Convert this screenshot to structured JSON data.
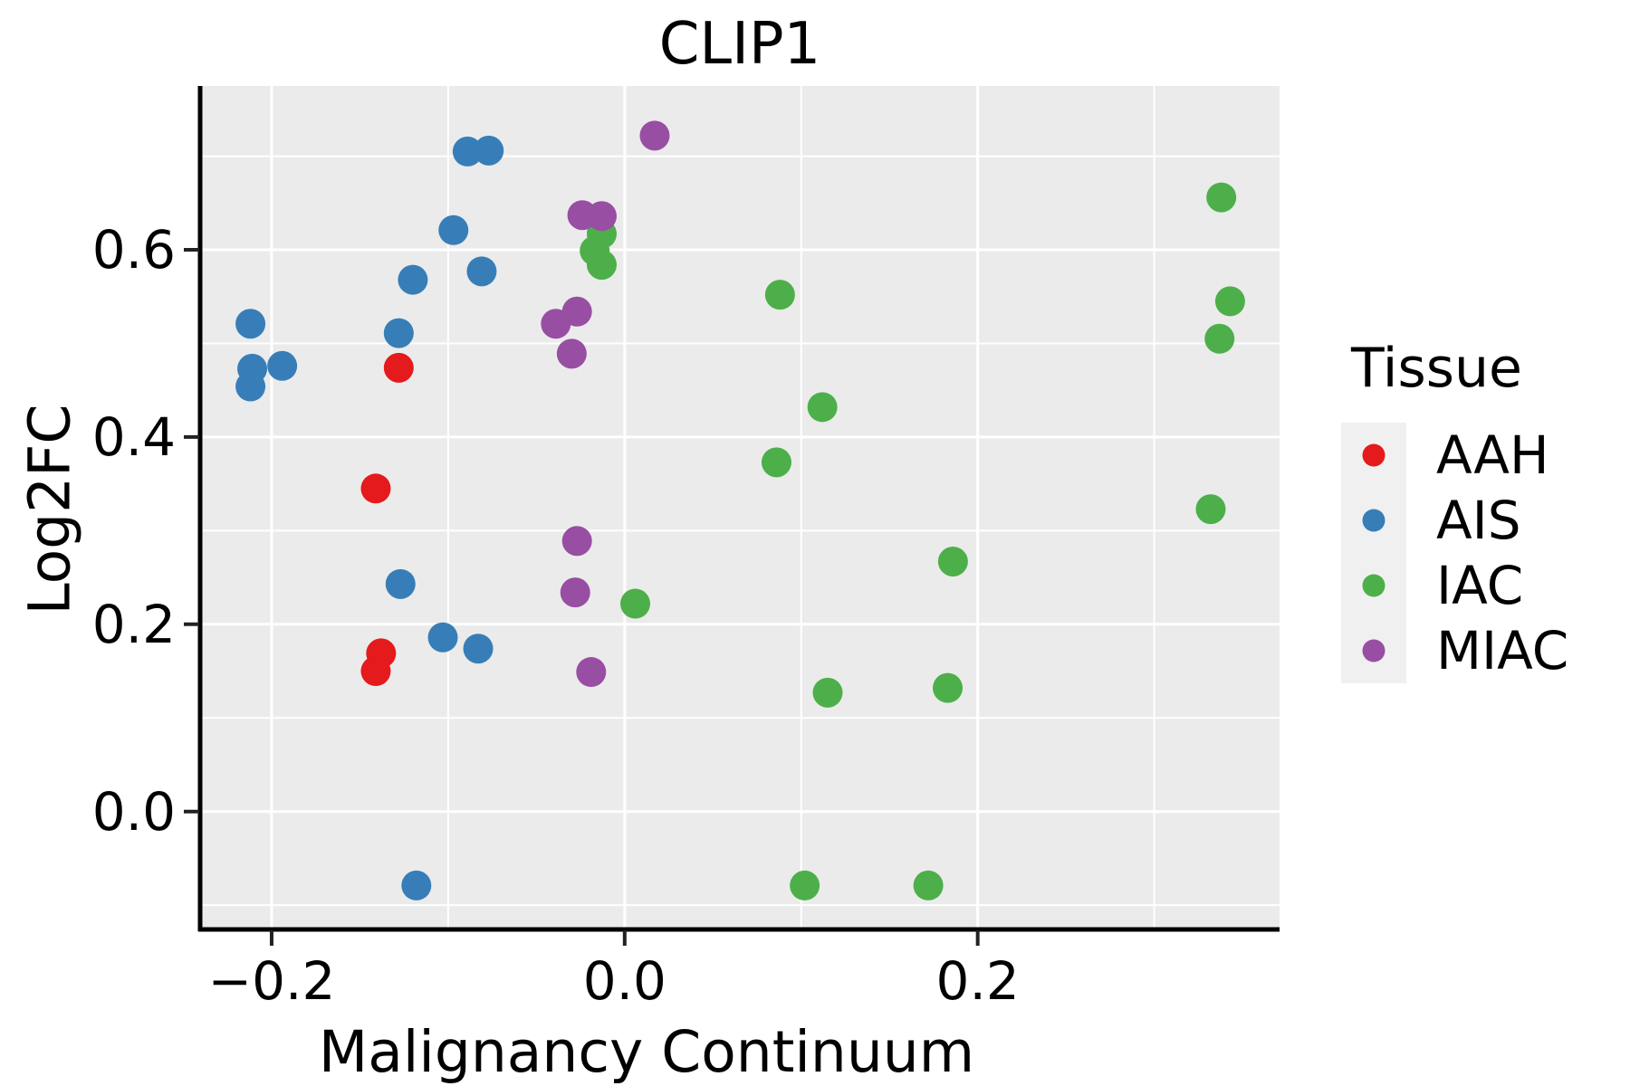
{
  "chart_data": {
    "type": "scatter",
    "title": "CLIP1",
    "xlabel": "Malignancy Continuum",
    "ylabel": "Log2FC",
    "xlim": [
      -0.24,
      0.371
    ],
    "ylim": [
      -0.125,
      0.775
    ],
    "x_major_ticks": [
      {
        "value": -0.2,
        "label": "−0.2"
      },
      {
        "value": 0.0,
        "label": "0.0"
      },
      {
        "value": 0.2,
        "label": "0.2"
      }
    ],
    "y_major_ticks": [
      {
        "value": 0.0,
        "label": "0.0"
      },
      {
        "value": 0.2,
        "label": "0.2"
      },
      {
        "value": 0.4,
        "label": "0.4"
      },
      {
        "value": 0.6,
        "label": "0.6"
      }
    ],
    "x_minor_ticks": [
      -0.3,
      -0.1,
      0.1,
      0.3
    ],
    "y_minor_ticks": [
      -0.1,
      0.1,
      0.3,
      0.5,
      0.7
    ],
    "grid": {
      "major": true,
      "minor": true,
      "color": "#ffffff"
    },
    "panel_bg": "#ebebeb",
    "legend": {
      "title": "Tissue",
      "position": "right",
      "key_bg": "#f0f0f0"
    },
    "series": [
      {
        "name": "AAH",
        "color": "#e41a1c",
        "points": [
          [
            -0.128,
            0.474
          ],
          [
            -0.141,
            0.345
          ],
          [
            -0.138,
            0.169
          ],
          [
            -0.141,
            0.15
          ]
        ]
      },
      {
        "name": "AIS",
        "color": "#377eb8",
        "points": [
          [
            -0.089,
            0.705
          ],
          [
            -0.077,
            0.706
          ],
          [
            -0.097,
            0.621
          ],
          [
            -0.12,
            0.568
          ],
          [
            -0.081,
            0.577
          ],
          [
            -0.212,
            0.521
          ],
          [
            -0.128,
            0.511
          ],
          [
            -0.211,
            0.473
          ],
          [
            -0.194,
            0.476
          ],
          [
            -0.212,
            0.454
          ],
          [
            -0.127,
            0.243
          ],
          [
            -0.103,
            0.186
          ],
          [
            -0.083,
            0.174
          ],
          [
            -0.118,
            -0.079
          ]
        ]
      },
      {
        "name": "IAC",
        "color": "#4daf4a",
        "points": [
          [
            -0.013,
            0.617
          ],
          [
            -0.017,
            0.599
          ],
          [
            -0.013,
            0.584
          ],
          [
            0.088,
            0.552
          ],
          [
            0.112,
            0.432
          ],
          [
            0.086,
            0.373
          ],
          [
            0.006,
            0.222
          ],
          [
            0.115,
            0.127
          ],
          [
            0.102,
            -0.079
          ],
          [
            0.172,
            -0.079
          ],
          [
            0.186,
            0.267
          ],
          [
            0.183,
            0.132
          ],
          [
            0.332,
            0.323
          ],
          [
            0.338,
            0.656
          ],
          [
            0.343,
            0.545
          ],
          [
            0.337,
            0.505
          ]
        ]
      },
      {
        "name": "MIAC",
        "color": "#984ea3",
        "points": [
          [
            0.017,
            0.722
          ],
          [
            -0.024,
            0.637
          ],
          [
            -0.013,
            0.636
          ],
          [
            -0.027,
            0.534
          ],
          [
            -0.039,
            0.521
          ],
          [
            -0.03,
            0.489
          ],
          [
            -0.027,
            0.289
          ],
          [
            -0.028,
            0.234
          ],
          [
            -0.019,
            0.149
          ]
        ]
      }
    ]
  }
}
